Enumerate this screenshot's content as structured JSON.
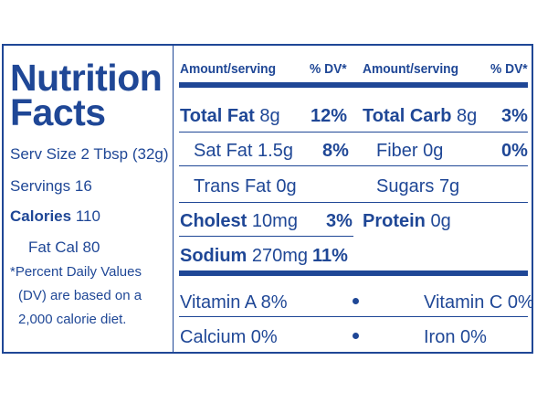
{
  "title_line1": "Nutrition",
  "title_line2": "Facts",
  "serv_size": "Serv Size 2 Tbsp (32g)",
  "servings": "Servings 16",
  "calories_label": "Calories",
  "calories_value": "110",
  "fat_cal": "Fat Cal 80",
  "footnote": [
    "*Percent Daily Values",
    "(DV) are based on a",
    "2,000 calorie diet."
  ],
  "header": {
    "amount": "Amount/serving",
    "dv": "% DV*",
    "amount2": "Amount/serving",
    "dv2": "% DV*"
  },
  "left_rows": [
    {
      "name": "Total Fat",
      "amount": "8g",
      "dv": "12%"
    },
    {
      "name": "Sat Fat",
      "amount": "1.5g",
      "dv": "8%"
    },
    {
      "name": "Trans Fat",
      "amount": "0g",
      "dv": ""
    },
    {
      "name": "Cholest",
      "amount": "10mg",
      "dv": "3%"
    },
    {
      "name": "Sodium",
      "amount": "270mg",
      "dv": "11%"
    }
  ],
  "right_rows": [
    {
      "name": "Total Carb",
      "amount": "8g",
      "dv": "3%"
    },
    {
      "name": "Fiber",
      "amount": "0g",
      "dv": "0%"
    },
    {
      "name": "Sugars",
      "amount": "7g",
      "dv": ""
    },
    {
      "name": "Protein",
      "amount": "0g",
      "dv": ""
    }
  ],
  "vitamins": [
    {
      "left": "Vitamin A 8%",
      "right": "Vitamin C 0%"
    },
    {
      "left": "Calcium 0%",
      "right": "Iron 0%"
    }
  ],
  "colors": {
    "ink": "#1f4796",
    "background": "#ffffff"
  }
}
